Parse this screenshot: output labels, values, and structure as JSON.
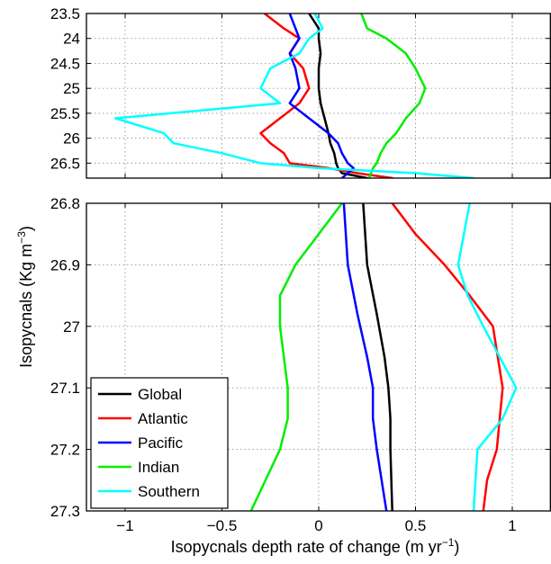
{
  "chart_data": {
    "type": "line",
    "orientation": "profile",
    "xlabel": "Isopycnals depth rate of change (m yr",
    "xlabel_sup": "−1",
    "xlabel_end": ")",
    "ylabel": "Isopycnals (Kg m",
    "ylabel_sup": "−3",
    "ylabel_end": ")",
    "xlim": [
      -1.2,
      1.2
    ],
    "x_ticks": [
      -1,
      -0.5,
      0,
      0.5,
      1
    ],
    "x_tick_labels": [
      "−1",
      "−0.5",
      "0",
      "0.5",
      "1"
    ],
    "grid": true,
    "legend_position": "bottom-left",
    "panels": [
      {
        "name": "upper",
        "ylim": [
          23.5,
          26.8
        ],
        "y_reversed": true,
        "y_ticks": [
          23.5,
          24,
          24.5,
          25,
          25.5,
          26,
          26.5
        ],
        "y_tick_labels": [
          "23.5",
          "24",
          "24.5",
          "25",
          "25.5",
          "26",
          "26.5"
        ],
        "series": [
          {
            "name": "Global",
            "color": "#000000",
            "x": [
              -0.05,
              0.0,
              0.0,
              0.01,
              0.0,
              0.0,
              0.01,
              0.03,
              0.05,
              0.06,
              0.08,
              0.09,
              0.1,
              0.12,
              0.25
            ],
            "y": [
              23.5,
              23.8,
              24.0,
              24.3,
              24.6,
              25.0,
              25.3,
              25.6,
              25.9,
              26.1,
              26.3,
              26.5,
              26.6,
              26.7,
              26.8
            ]
          },
          {
            "name": "Atlantic",
            "color": "#ff0000",
            "x": [
              -0.28,
              -0.18,
              -0.1,
              -0.15,
              -0.08,
              -0.05,
              -0.1,
              -0.2,
              -0.3,
              -0.25,
              -0.18,
              -0.15,
              0.05,
              0.2,
              0.38
            ],
            "y": [
              23.5,
              23.8,
              24.0,
              24.3,
              24.6,
              25.0,
              25.3,
              25.6,
              25.9,
              26.1,
              26.3,
              26.5,
              26.6,
              26.7,
              26.8
            ]
          },
          {
            "name": "Pacific",
            "color": "#0000ff",
            "x": [
              -0.15,
              -0.12,
              -0.1,
              -0.15,
              -0.12,
              -0.1,
              -0.15,
              -0.05,
              0.05,
              0.1,
              0.12,
              0.15,
              0.18,
              0.15,
              0.12
            ],
            "y": [
              23.5,
              23.8,
              24.0,
              24.3,
              24.6,
              25.0,
              25.3,
              25.6,
              25.9,
              26.1,
              26.3,
              26.5,
              26.6,
              26.7,
              26.8
            ]
          },
          {
            "name": "Indian",
            "color": "#00ee00",
            "x": [
              0.22,
              0.25,
              0.35,
              0.45,
              0.5,
              0.55,
              0.52,
              0.45,
              0.4,
              0.35,
              0.32,
              0.3,
              0.28,
              0.27,
              0.26
            ],
            "y": [
              23.5,
              23.8,
              24.0,
              24.3,
              24.6,
              25.0,
              25.3,
              25.6,
              25.9,
              26.1,
              26.3,
              26.5,
              26.6,
              26.7,
              26.8
            ]
          },
          {
            "name": "Southern",
            "color": "#00ffff",
            "x": [
              -0.02,
              0.02,
              -0.05,
              -0.1,
              -0.25,
              -0.3,
              -0.2,
              -1.05,
              -0.8,
              -0.75,
              -0.5,
              -0.3,
              0.0,
              0.5,
              0.8
            ],
            "y": [
              23.5,
              23.8,
              24.0,
              24.3,
              24.6,
              25.0,
              25.3,
              25.6,
              25.9,
              26.1,
              26.3,
              26.5,
              26.6,
              26.7,
              26.8
            ]
          }
        ]
      },
      {
        "name": "lower",
        "ylim": [
          26.8,
          27.3
        ],
        "y_reversed": true,
        "y_ticks": [
          26.8,
          26.9,
          27.0,
          27.1,
          27.2,
          27.3
        ],
        "y_tick_labels": [
          "26.8",
          "26.9",
          "27",
          "27.1",
          "27.2",
          "27.3"
        ],
        "series": [
          {
            "name": "Global",
            "color": "#000000",
            "x": [
              0.23,
              0.25,
              0.3,
              0.34,
              0.36,
              0.37,
              0.37,
              0.38
            ],
            "y": [
              26.8,
              26.9,
              26.98,
              27.05,
              27.1,
              27.15,
              27.2,
              27.3
            ]
          },
          {
            "name": "Atlantic",
            "color": "#ff0000",
            "x": [
              0.38,
              0.5,
              0.65,
              0.78,
              0.9,
              0.95,
              0.92,
              0.87,
              0.85
            ],
            "y": [
              26.8,
              26.85,
              26.9,
              26.95,
              27.0,
              27.1,
              27.2,
              27.25,
              27.3
            ]
          },
          {
            "name": "Pacific",
            "color": "#0000ff",
            "x": [
              0.13,
              0.15,
              0.2,
              0.25,
              0.28,
              0.28,
              0.3,
              0.35
            ],
            "y": [
              26.8,
              26.9,
              26.98,
              27.05,
              27.1,
              27.15,
              27.2,
              27.3
            ]
          },
          {
            "name": "Indian",
            "color": "#00ee00",
            "x": [
              0.12,
              0.0,
              -0.12,
              -0.2,
              -0.2,
              -0.16,
              -0.16,
              -0.2,
              -0.35
            ],
            "y": [
              26.8,
              26.85,
              26.9,
              26.95,
              27.0,
              27.1,
              27.15,
              27.2,
              27.3
            ]
          },
          {
            "name": "Southern",
            "color": "#00ffff",
            "x": [
              0.78,
              0.75,
              0.72,
              0.77,
              0.85,
              1.02,
              0.95,
              0.82,
              0.8
            ],
            "y": [
              26.8,
              26.85,
              26.9,
              26.95,
              27.0,
              27.1,
              27.15,
              27.2,
              27.3
            ]
          }
        ]
      }
    ]
  }
}
